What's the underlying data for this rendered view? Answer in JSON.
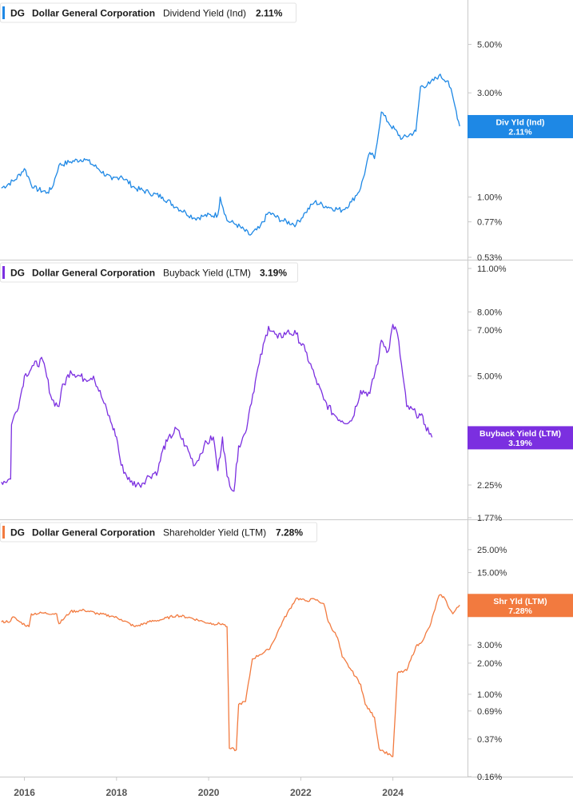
{
  "chart_data": [
    {
      "type": "line",
      "scale": "log",
      "ticker": "DG",
      "company": "Dollar General Corporation",
      "metric": "Dividend Yield (Ind)",
      "current_value": "2.11%",
      "badge_label": "Div Yld (Ind)",
      "badge_value": "2.11%",
      "color": "#1e88e5",
      "ylim": [
        0.53,
        6.2
      ],
      "y_ticks": [
        {
          "value": 5.0,
          "label": "5.00%"
        },
        {
          "value": 3.0,
          "label": "3.00%"
        },
        {
          "value": 2.0,
          "label": "2.00%"
        },
        {
          "value": 1.0,
          "label": "1.00%"
        },
        {
          "value": 0.77,
          "label": "0.77%"
        },
        {
          "value": 0.53,
          "label": "0.53%"
        }
      ],
      "x": [
        2015.5,
        2015.8,
        2016.0,
        2016.2,
        2016.5,
        2016.6,
        2016.75,
        2017.0,
        2017.3,
        2017.6,
        2017.9,
        2018.1,
        2018.4,
        2018.7,
        2019.0,
        2019.3,
        2019.5,
        2019.7,
        2019.9,
        2020.2,
        2020.25,
        2020.4,
        2020.6,
        2020.9,
        2021.1,
        2021.3,
        2021.6,
        2021.9,
        2022.1,
        2022.3,
        2022.6,
        2022.9,
        2023.1,
        2023.3,
        2023.5,
        2023.6,
        2023.75,
        2023.9,
        2024.2,
        2024.5,
        2024.6,
        2024.8,
        2025.0,
        2025.2,
        2025.35,
        2025.45
      ],
      "values": [
        1.1,
        1.2,
        1.35,
        1.1,
        1.05,
        1.1,
        1.4,
        1.45,
        1.5,
        1.35,
        1.2,
        1.25,
        1.1,
        1.05,
        1.0,
        0.9,
        0.85,
        0.8,
        0.82,
        0.83,
        1.0,
        0.78,
        0.75,
        0.67,
        0.72,
        0.85,
        0.78,
        0.75,
        0.85,
        0.95,
        0.9,
        0.87,
        0.95,
        1.1,
        1.6,
        1.5,
        2.45,
        2.2,
        1.85,
        2.0,
        3.2,
        3.3,
        3.6,
        3.4,
        2.6,
        2.11
      ]
    },
    {
      "type": "line",
      "scale": "log",
      "ticker": "DG",
      "company": "Dollar General Corporation",
      "metric": "Buyback Yield (LTM)",
      "current_value": "3.19%",
      "badge_label": "Buyback Yield (LTM)",
      "badge_value": "3.19%",
      "color": "#7b2fe0",
      "ylim": [
        1.77,
        11.0
      ],
      "y_ticks": [
        {
          "value": 11.0,
          "label": "11.00%"
        },
        {
          "value": 8.0,
          "label": "8.00%"
        },
        {
          "value": 7.0,
          "label": "7.00%"
        },
        {
          "value": 5.0,
          "label": "5.00%"
        },
        {
          "value": 2.25,
          "label": "2.25%"
        },
        {
          "value": 1.77,
          "label": "1.77%"
        }
      ],
      "x": [
        2015.5,
        2015.7,
        2015.72,
        2015.9,
        2016.0,
        2016.2,
        2016.4,
        2016.6,
        2016.75,
        2016.8,
        2017.0,
        2017.3,
        2017.5,
        2017.7,
        2017.9,
        2018.0,
        2018.1,
        2018.3,
        2018.5,
        2018.7,
        2018.9,
        2019.0,
        2019.1,
        2019.3,
        2019.5,
        2019.7,
        2019.9,
        2020.1,
        2020.2,
        2020.3,
        2020.4,
        2020.55,
        2020.65,
        2020.8,
        2020.9,
        2021.1,
        2021.3,
        2021.5,
        2021.7,
        2021.9,
        2022.1,
        2022.3,
        2022.5,
        2022.7,
        2022.9,
        2023.1,
        2023.3,
        2023.5,
        2023.7,
        2023.75,
        2023.9,
        2024.0,
        2024.1,
        2024.3,
        2024.5,
        2024.6,
        2024.7,
        2024.85
      ],
      "values": [
        2.3,
        2.35,
        3.5,
        4.2,
        5.0,
        5.4,
        5.6,
        4.2,
        4.0,
        4.5,
        5.2,
        4.9,
        5.0,
        4.2,
        3.5,
        3.2,
        2.6,
        2.3,
        2.25,
        2.4,
        2.5,
        2.9,
        3.1,
        3.4,
        3.0,
        2.6,
        3.0,
        3.2,
        2.5,
        3.2,
        2.4,
        2.15,
        3.0,
        3.3,
        4.0,
        5.5,
        7.2,
        6.6,
        6.9,
        6.8,
        6.0,
        5.0,
        4.2,
        3.8,
        3.6,
        3.6,
        4.5,
        4.4,
        5.8,
        6.5,
        6.0,
        7.3,
        6.8,
        4.0,
        3.8,
        3.75,
        3.5,
        3.19
      ]
    },
    {
      "type": "line",
      "scale": "log",
      "ticker": "DG",
      "company": "Dollar General Corporation",
      "metric": "Shareholder Yield (LTM)",
      "current_value": "7.28%",
      "badge_label": "Shr Yld (LTM)",
      "badge_value": "7.28%",
      "color": "#f27a3f",
      "ylim": [
        0.16,
        32
      ],
      "y_ticks": [
        {
          "value": 25.0,
          "label": "25.00%"
        },
        {
          "value": 15.0,
          "label": "15.00%"
        },
        {
          "value": 3.0,
          "label": "3.00%"
        },
        {
          "value": 2.0,
          "label": "2.00%"
        },
        {
          "value": 1.0,
          "label": "1.00%"
        },
        {
          "value": 0.69,
          "label": "0.69%"
        },
        {
          "value": 0.37,
          "label": "0.37%"
        },
        {
          "value": 0.16,
          "label": "0.16%"
        }
      ],
      "x": [
        2015.5,
        2015.7,
        2015.75,
        2015.9,
        2016.1,
        2016.15,
        2016.4,
        2016.7,
        2016.75,
        2017.0,
        2017.3,
        2017.6,
        2017.9,
        2018.1,
        2018.4,
        2018.7,
        2019.0,
        2019.3,
        2019.6,
        2019.9,
        2020.1,
        2020.3,
        2020.4,
        2020.45,
        2020.6,
        2020.65,
        2020.8,
        2020.95,
        2021.1,
        2021.3,
        2021.4,
        2021.6,
        2021.9,
        2022.1,
        2022.3,
        2022.5,
        2022.6,
        2022.8,
        2022.9,
        2023.1,
        2023.3,
        2023.4,
        2023.6,
        2023.7,
        2023.8,
        2023.95,
        2024.0,
        2024.1,
        2024.3,
        2024.5,
        2024.6,
        2024.8,
        2025.0,
        2025.1,
        2025.25,
        2025.3,
        2025.45
      ],
      "values": [
        5.0,
        5.1,
        5.6,
        5.0,
        4.5,
        6.0,
        6.1,
        6.0,
        4.8,
        6.3,
        6.5,
        6.0,
        5.7,
        5.3,
        4.5,
        5.0,
        5.3,
        5.8,
        5.5,
        5.0,
        4.8,
        4.8,
        4.5,
        0.3,
        0.29,
        0.8,
        0.85,
        2.2,
        2.4,
        2.7,
        3.2,
        5.0,
        8.5,
        8.0,
        8.3,
        7.5,
        5.0,
        3.5,
        2.3,
        1.7,
        1.25,
        0.8,
        0.6,
        0.3,
        0.28,
        0.26,
        0.25,
        1.6,
        1.7,
        2.9,
        3.1,
        4.5,
        9.0,
        8.8,
        6.5,
        6.0,
        7.28
      ]
    }
  ],
  "x_axis": {
    "ticks": [
      {
        "value": 2016,
        "label": "2016"
      },
      {
        "value": 2018,
        "label": "2018"
      },
      {
        "value": 2020,
        "label": "2020"
      },
      {
        "value": 2022,
        "label": "2022"
      },
      {
        "value": 2024,
        "label": "2024"
      }
    ],
    "xlim": [
      2015.47,
      2025.62
    ]
  }
}
